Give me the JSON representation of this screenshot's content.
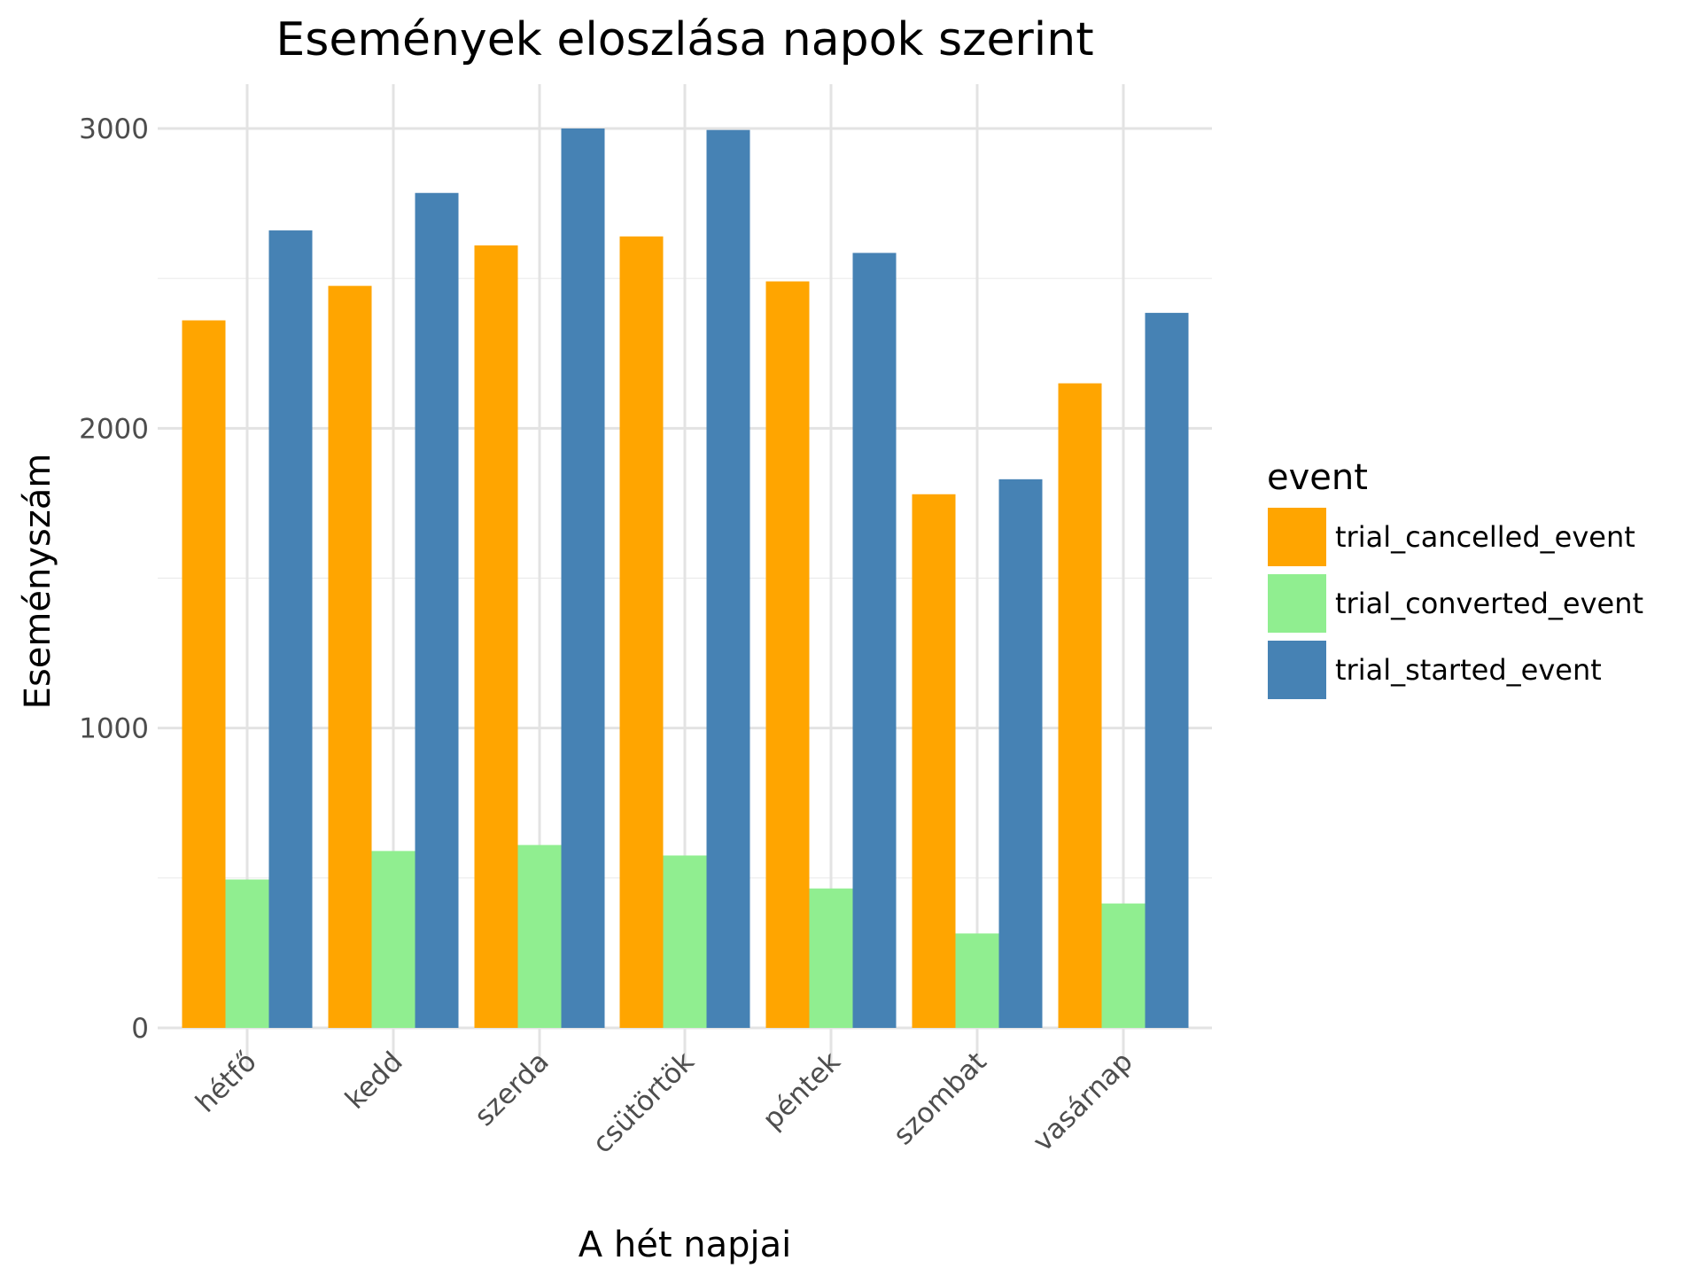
{
  "chart_data": {
    "type": "bar",
    "title": "Események eloszlása napok szerint",
    "xlabel": "A hét napjai",
    "ylabel": "Eseményszám",
    "categories": [
      "hétfő",
      "kedd",
      "szerda",
      "csütörtök",
      "péntek",
      "szombat",
      "vasárnap"
    ],
    "series": [
      {
        "name": "trial_cancelled_event",
        "color": "#FFA500",
        "values": [
          2360,
          2475,
          2610,
          2640,
          2490,
          1780,
          2150
        ]
      },
      {
        "name": "trial_converted_event",
        "color": "#90EE90",
        "values": [
          495,
          590,
          610,
          575,
          465,
          315,
          415
        ]
      },
      {
        "name": "trial_started_event",
        "color": "#4682B4",
        "values": [
          2660,
          2785,
          3000,
          2995,
          2585,
          1830,
          2385
        ]
      }
    ],
    "ylim": [
      0,
      3000
    ],
    "yticks": [
      0,
      1000,
      2000,
      3000
    ],
    "ytick_labels": [
      "0",
      "1000",
      "2000",
      "3000"
    ],
    "grid": true,
    "legend": {
      "title": "event",
      "position": "right"
    }
  }
}
